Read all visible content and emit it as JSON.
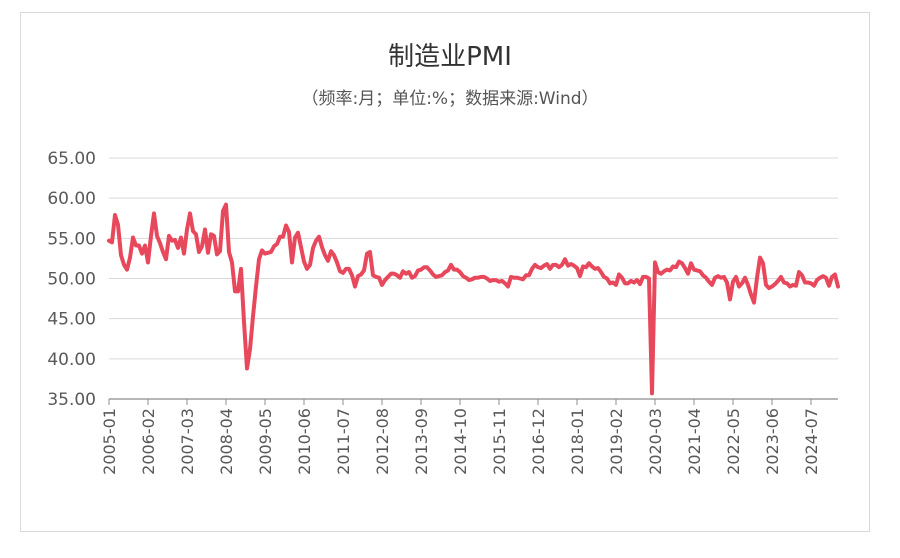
{
  "chart_data": {
    "type": "line",
    "title": "制造业PMI",
    "subtitle": "（频率:月；单位:%；数据来源:Wind）",
    "xlabel": "",
    "ylabel": "",
    "ylim": [
      35,
      65
    ],
    "yticks": [
      "35.00",
      "40.00",
      "45.00",
      "50.00",
      "55.00",
      "60.00",
      "65.00"
    ],
    "xticks": [
      "2005-01",
      "2006-02",
      "2007-03",
      "2008-04",
      "2009-05",
      "2010-06",
      "2011-07",
      "2012-08",
      "2013-09",
      "2014-10",
      "2015-11",
      "2016-12",
      "2018-01",
      "2019-02",
      "2020-03",
      "2021-04",
      "2022-05",
      "2023-06",
      "2024-07"
    ],
    "grid": true,
    "legend": "none",
    "line_color": "#e8485c",
    "x_start": "2005-01",
    "series": [
      {
        "values": [
          54.7,
          54.5,
          57.9,
          56.7,
          52.9,
          51.7,
          51.1,
          52.6,
          55.1,
          54.1,
          54.1,
          53.1,
          54.1,
          52.0,
          55.3,
          58.1,
          55.3,
          54.4,
          53.3,
          52.4,
          55.3,
          54.7,
          54.8,
          53.8,
          55.1,
          53.1,
          56.1,
          58.1,
          55.9,
          55.5,
          53.3,
          54.0,
          56.1,
          53.2,
          55.5,
          55.3,
          53.0,
          53.4,
          58.4,
          59.2,
          53.3,
          52.0,
          48.4,
          48.4,
          51.2,
          44.6,
          38.8,
          41.2,
          45.3,
          49.0,
          52.4,
          53.5,
          53.1,
          53.2,
          53.3,
          54.0,
          54.3,
          55.2,
          55.2,
          56.6,
          55.8,
          52.0,
          55.1,
          55.7,
          53.9,
          52.1,
          51.2,
          51.7,
          53.8,
          54.7,
          55.2,
          53.9,
          52.9,
          52.2,
          53.4,
          52.9,
          52.0,
          50.9,
          50.7,
          51.2,
          51.2,
          50.4,
          49.0,
          50.3,
          50.5,
          51.0,
          53.1,
          53.3,
          50.4,
          50.2,
          50.1,
          49.2,
          49.8,
          50.2,
          50.6,
          50.6,
          50.4,
          50.1,
          50.9,
          50.6,
          50.8,
          50.1,
          50.3,
          51.0,
          51.1,
          51.4,
          51.4,
          51.0,
          50.5,
          50.2,
          50.3,
          50.4,
          50.8,
          51.0,
          51.7,
          51.1,
          51.1,
          50.8,
          50.3,
          50.1,
          49.8,
          49.9,
          50.1,
          50.1,
          50.2,
          50.2,
          50.0,
          49.7,
          49.8,
          49.8,
          49.6,
          49.7,
          49.4,
          49.0,
          50.2,
          50.1,
          50.1,
          50.0,
          49.9,
          50.4,
          50.4,
          51.2,
          51.7,
          51.4,
          51.3,
          51.6,
          51.8,
          51.2,
          51.7,
          51.7,
          51.4,
          51.7,
          52.4,
          51.6,
          51.8,
          51.6,
          51.3,
          50.3,
          51.5,
          51.4,
          51.9,
          51.5,
          51.2,
          51.3,
          50.8,
          50.2,
          50.0,
          49.4,
          49.5,
          49.2,
          50.5,
          50.1,
          49.4,
          49.4,
          49.7,
          49.5,
          49.8,
          49.3,
          50.2,
          50.2,
          50.0,
          35.7,
          52.0,
          50.8,
          50.6,
          50.9,
          51.1,
          51.0,
          51.5,
          51.4,
          52.1,
          51.9,
          51.3,
          50.6,
          51.9,
          51.1,
          51.0,
          50.9,
          50.4,
          50.1,
          49.6,
          49.2,
          50.1,
          50.3,
          50.1,
          50.2,
          49.5,
          47.4,
          49.6,
          50.2,
          49.0,
          49.4,
          50.1,
          49.2,
          48.0,
          47.0,
          50.1,
          52.6,
          51.9,
          49.2,
          48.8,
          49.0,
          49.3,
          49.7,
          50.2,
          49.5,
          49.4,
          49.0,
          49.2,
          49.1,
          50.8,
          50.4,
          49.5,
          49.5,
          49.4,
          49.1,
          49.8,
          50.1,
          50.3,
          50.1,
          49.1,
          50.2,
          50.5,
          49.0
        ]
      }
    ]
  }
}
